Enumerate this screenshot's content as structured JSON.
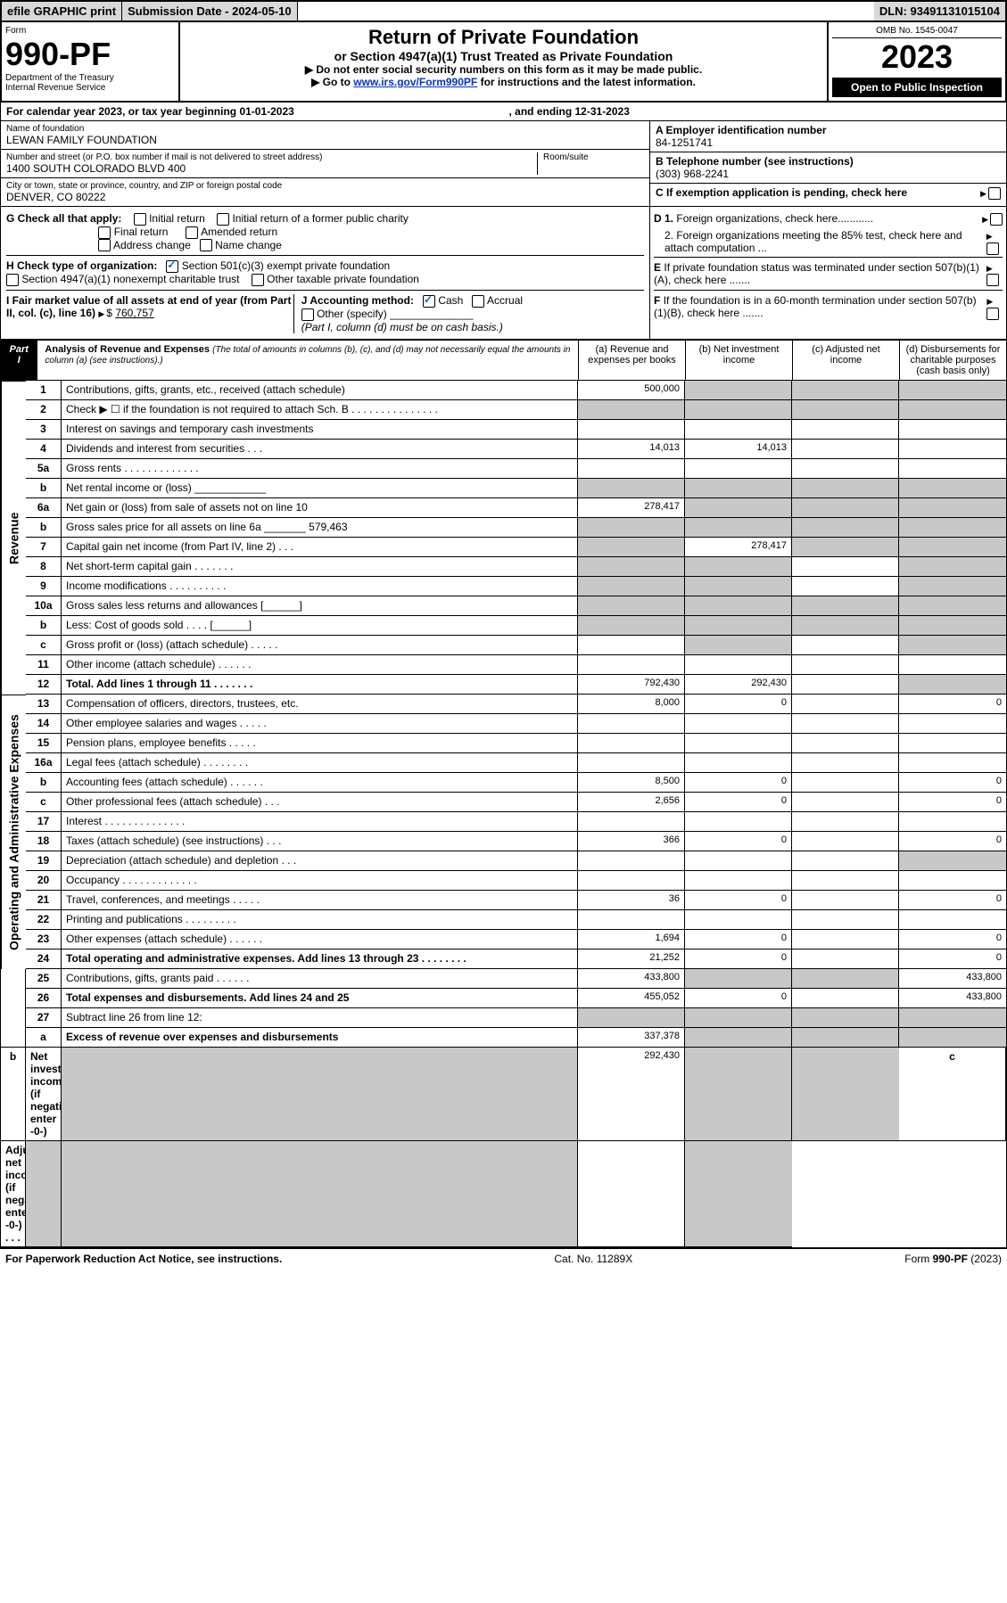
{
  "header": {
    "efile": "efile GRAPHIC print",
    "submission": "Submission Date - 2024-05-10",
    "dln": "DLN: 93491131015104"
  },
  "titlebox": {
    "form_label": "Form",
    "form_num": "990-PF",
    "dept": "Department of the Treasury",
    "irs": "Internal Revenue Service",
    "title": "Return of Private Foundation",
    "subtitle": "or Section 4947(a)(1) Trust Treated as Private Foundation",
    "note1": "▶ Do not enter social security numbers on this form as it may be made public.",
    "note2_pre": "▶ Go to ",
    "note2_link": "www.irs.gov/Form990PF",
    "note2_post": " for instructions and the latest information.",
    "omb": "OMB No. 1545-0047",
    "year": "2023",
    "open": "Open to Public Inspection"
  },
  "calyr": {
    "text1": "For calendar year 2023, or tax year beginning 01-01-2023",
    "text2": ", and ending 12-31-2023"
  },
  "entity": {
    "name_lbl": "Name of foundation",
    "name": "LEWAN FAMILY FOUNDATION",
    "addr_lbl": "Number and street (or P.O. box number if mail is not delivered to street address)",
    "addr": "1400 SOUTH COLORADO BLVD 400",
    "room_lbl": "Room/suite",
    "city_lbl": "City or town, state or province, country, and ZIP or foreign postal code",
    "city": "DENVER, CO  80222",
    "a_lbl": "A Employer identification number",
    "a_val": "84-1251741",
    "b_lbl": "B Telephone number (see instructions)",
    "b_val": "(303) 968-2241",
    "c_lbl": "C If exemption application is pending, check here"
  },
  "checks": {
    "g_lbl": "G Check all that apply:",
    "g1": "Initial return",
    "g2": "Initial return of a former public charity",
    "g3": "Final return",
    "g4": "Amended return",
    "g5": "Address change",
    "g6": "Name change",
    "h_lbl": "H Check type of organization:",
    "h1": "Section 501(c)(3) exempt private foundation",
    "h2": "Section 4947(a)(1) nonexempt charitable trust",
    "h3": "Other taxable private foundation",
    "d1": "D 1. Foreign organizations, check here............",
    "d2": "2. Foreign organizations meeting the 85% test, check here and attach computation ...",
    "e": "E If private foundation status was terminated under section 507(b)(1)(A), check here .......",
    "i_lbl": "I Fair market value of all assets at end of year (from Part II, col. (c), line 16)",
    "i_val": "760,757",
    "j_lbl": "J Accounting method:",
    "j1": "Cash",
    "j2": "Accrual",
    "j3": "Other (specify)",
    "j_note": "(Part I, column (d) must be on cash basis.)",
    "f": "F If the foundation is in a 60-month termination under section 507(b)(1)(B), check here ......."
  },
  "part1": {
    "label": "Part I",
    "title": "Analysis of Revenue and Expenses",
    "title_note": "(The total of amounts in columns (b), (c), and (d) may not necessarily equal the amounts in column (a) (see instructions).)",
    "col_a": "(a)   Revenue and expenses per books",
    "col_b": "(b)   Net investment income",
    "col_c": "(c)   Adjusted net income",
    "col_d": "(d)   Disbursements for charitable purposes (cash basis only)"
  },
  "sidelabels": {
    "revenue": "Revenue",
    "expenses": "Operating and Administrative Expenses"
  },
  "rows": [
    {
      "n": "1",
      "t": "Contributions, gifts, grants, etc., received (attach schedule)",
      "a": "500,000",
      "b": "",
      "c": "",
      "d": "",
      "sb": true,
      "sc": true,
      "sd": true
    },
    {
      "n": "2",
      "t": "Check ▶ ☐ if the foundation is not required to attach Sch. B   . . . . . . . . . . . . . . .",
      "a": "",
      "b": "",
      "c": "",
      "d": "",
      "sa": true,
      "sb": true,
      "sc": true,
      "sd": true,
      "bold_not": true
    },
    {
      "n": "3",
      "t": "Interest on savings and temporary cash investments",
      "a": "",
      "b": "",
      "c": "",
      "d": ""
    },
    {
      "n": "4",
      "t": "Dividends and interest from securities   . . .",
      "a": "14,013",
      "b": "14,013",
      "c": "",
      "d": ""
    },
    {
      "n": "5a",
      "t": "Gross rents   . . . . . . . . . . . . .",
      "a": "",
      "b": "",
      "c": "",
      "d": ""
    },
    {
      "n": "b",
      "t": "Net rental income or (loss)  ____________",
      "a": "",
      "b": "",
      "c": "",
      "d": "",
      "sa": true,
      "sb": true,
      "sc": true,
      "sd": true
    },
    {
      "n": "6a",
      "t": "Net gain or (loss) from sale of assets not on line 10",
      "a": "278,417",
      "b": "",
      "c": "",
      "d": "",
      "sb": true,
      "sc": true,
      "sd": true
    },
    {
      "n": "b",
      "t": "Gross sales price for all assets on line 6a _______ 579,463",
      "a": "",
      "b": "",
      "c": "",
      "d": "",
      "sa": true,
      "sb": true,
      "sc": true,
      "sd": true
    },
    {
      "n": "7",
      "t": "Capital gain net income (from Part IV, line 2)   . . .",
      "a": "",
      "b": "278,417",
      "c": "",
      "d": "",
      "sa": true,
      "sc": true,
      "sd": true
    },
    {
      "n": "8",
      "t": "Net short-term capital gain   . . . . . . .",
      "a": "",
      "b": "",
      "c": "",
      "d": "",
      "sa": true,
      "sb": true,
      "sd": true
    },
    {
      "n": "9",
      "t": "Income modifications . . . . . . . . . .",
      "a": "",
      "b": "",
      "c": "",
      "d": "",
      "sa": true,
      "sb": true,
      "sd": true
    },
    {
      "n": "10a",
      "t": "Gross sales less returns and allowances  [______]",
      "a": "",
      "b": "",
      "c": "",
      "d": "",
      "sa": true,
      "sb": true,
      "sc": true,
      "sd": true
    },
    {
      "n": "b",
      "t": "Less: Cost of goods sold   . . . . [______]",
      "a": "",
      "b": "",
      "c": "",
      "d": "",
      "sa": true,
      "sb": true,
      "sc": true,
      "sd": true
    },
    {
      "n": "c",
      "t": "Gross profit or (loss) (attach schedule)   . . . . .",
      "a": "",
      "b": "",
      "c": "",
      "d": "",
      "sb": true,
      "sd": true
    },
    {
      "n": "11",
      "t": "Other income (attach schedule)   . . . . . .",
      "a": "",
      "b": "",
      "c": "",
      "d": ""
    },
    {
      "n": "12",
      "t": "Total. Add lines 1 through 11   . . . . . . .",
      "a": "792,430",
      "b": "292,430",
      "c": "",
      "d": "",
      "bold": true,
      "sd": true
    },
    {
      "n": "13",
      "t": "Compensation of officers, directors, trustees, etc.",
      "a": "8,000",
      "b": "0",
      "c": "",
      "d": "0"
    },
    {
      "n": "14",
      "t": "Other employee salaries and wages   . . . . .",
      "a": "",
      "b": "",
      "c": "",
      "d": ""
    },
    {
      "n": "15",
      "t": "Pension plans, employee benefits  . . . . .",
      "a": "",
      "b": "",
      "c": "",
      "d": ""
    },
    {
      "n": "16a",
      "t": "Legal fees (attach schedule) . . . . . . . .",
      "a": "",
      "b": "",
      "c": "",
      "d": ""
    },
    {
      "n": "b",
      "t": "Accounting fees (attach schedule) . . . . . .",
      "a": "8,500",
      "b": "0",
      "c": "",
      "d": "0"
    },
    {
      "n": "c",
      "t": "Other professional fees (attach schedule)   . . .",
      "a": "2,656",
      "b": "0",
      "c": "",
      "d": "0"
    },
    {
      "n": "17",
      "t": "Interest . . . . . . . . . . . . . .",
      "a": "",
      "b": "",
      "c": "",
      "d": ""
    },
    {
      "n": "18",
      "t": "Taxes (attach schedule) (see instructions)   . . .",
      "a": "366",
      "b": "0",
      "c": "",
      "d": "0"
    },
    {
      "n": "19",
      "t": "Depreciation (attach schedule) and depletion   . . .",
      "a": "",
      "b": "",
      "c": "",
      "d": "",
      "sd": true
    },
    {
      "n": "20",
      "t": "Occupancy . . . . . . . . . . . . .",
      "a": "",
      "b": "",
      "c": "",
      "d": ""
    },
    {
      "n": "21",
      "t": "Travel, conferences, and meetings  . . . . .",
      "a": "36",
      "b": "0",
      "c": "",
      "d": "0"
    },
    {
      "n": "22",
      "t": "Printing and publications . . . . . . . . .",
      "a": "",
      "b": "",
      "c": "",
      "d": ""
    },
    {
      "n": "23",
      "t": "Other expenses (attach schedule) . . . . . .",
      "a": "1,694",
      "b": "0",
      "c": "",
      "d": "0"
    },
    {
      "n": "24",
      "t": "Total operating and administrative expenses. Add lines 13 through 23   . . . . . . . .",
      "a": "21,252",
      "b": "0",
      "c": "",
      "d": "0",
      "bold": true
    },
    {
      "n": "25",
      "t": "Contributions, gifts, grants paid   . . . . . .",
      "a": "433,800",
      "b": "",
      "c": "",
      "d": "433,800",
      "sb": true,
      "sc": true
    },
    {
      "n": "26",
      "t": "Total expenses and disbursements. Add lines 24 and 25",
      "a": "455,052",
      "b": "0",
      "c": "",
      "d": "433,800",
      "bold": true
    },
    {
      "n": "27",
      "t": "Subtract line 26 from line 12:",
      "a": "",
      "b": "",
      "c": "",
      "d": "",
      "sa": true,
      "sb": true,
      "sc": true,
      "sd": true
    },
    {
      "n": "a",
      "t": "Excess of revenue over expenses and disbursements",
      "a": "337,378",
      "b": "",
      "c": "",
      "d": "",
      "bold": true,
      "sb": true,
      "sc": true,
      "sd": true
    },
    {
      "n": "b",
      "t": "Net investment income (if negative, enter -0-)",
      "a": "",
      "b": "292,430",
      "c": "",
      "d": "",
      "bold": true,
      "sa": true,
      "sc": true,
      "sd": true
    },
    {
      "n": "c",
      "t": "Adjusted net income (if negative, enter -0-)   . . .",
      "a": "",
      "b": "",
      "c": "",
      "d": "",
      "bold": true,
      "sa": true,
      "sb": true,
      "sd": true
    }
  ],
  "footer": {
    "left": "For Paperwork Reduction Act Notice, see instructions.",
    "mid": "Cat. No. 11289X",
    "right": "Form 990-PF (2023)"
  },
  "colors": {
    "shade": "#c8c8c8",
    "header_bg": "#d8d8d8",
    "link": "#0033cc",
    "check": "#0066cc"
  }
}
